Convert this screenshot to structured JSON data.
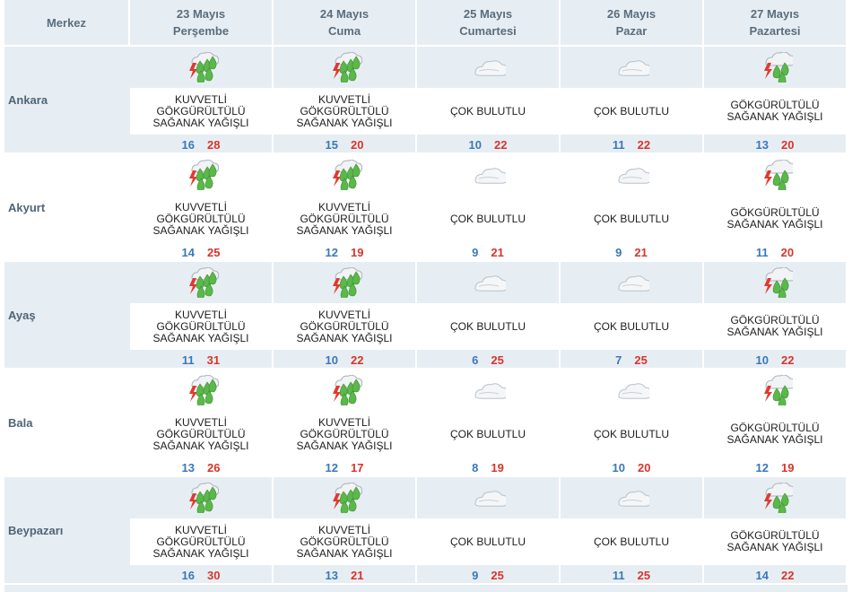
{
  "header": {
    "station_label": "Merkez",
    "days": [
      {
        "date": "23 Mayıs",
        "weekday": "Perşembe"
      },
      {
        "date": "24 Mayıs",
        "weekday": "Cuma"
      },
      {
        "date": "25 Mayıs",
        "weekday": "Cumartesi"
      },
      {
        "date": "26 Mayıs",
        "weekday": "Pazar"
      },
      {
        "date": "27 Mayıs",
        "weekday": "Pazartesi"
      }
    ]
  },
  "colors": {
    "header_bg": "#e7eef3",
    "header_text": "#5a6d7d",
    "temp_min": "#3a78b8",
    "temp_max": "#d9342b"
  },
  "rows": [
    {
      "city": "Ankara",
      "days": [
        {
          "icon": "heavy-thunder-shower-icon",
          "lines": [
            "KUVVETLİ",
            "GÖKGÜRÜLTÜLÜ",
            "SAĞANAK YAĞIŞLI"
          ],
          "min": "16",
          "max": "28"
        },
        {
          "icon": "heavy-thunder-shower-icon",
          "lines": [
            "KUVVETLİ",
            "GÖKGÜRÜLTÜLÜ",
            "SAĞANAK YAĞIŞLI"
          ],
          "min": "15",
          "max": "20"
        },
        {
          "icon": "cloudy-icon",
          "lines": [
            "ÇOK BULUTLU"
          ],
          "min": "10",
          "max": "22"
        },
        {
          "icon": "cloudy-icon",
          "lines": [
            "ÇOK BULUTLU"
          ],
          "min": "11",
          "max": "22"
        },
        {
          "icon": "thunder-shower-icon",
          "lines": [
            "GÖKGÜRÜLTÜLÜ",
            "SAĞANAK YAĞIŞLI"
          ],
          "min": "13",
          "max": "20"
        }
      ]
    },
    {
      "city": "Akyurt",
      "days": [
        {
          "icon": "heavy-thunder-shower-icon",
          "lines": [
            "KUVVETLİ",
            "GÖKGÜRÜLTÜLÜ",
            "SAĞANAK YAĞIŞLI"
          ],
          "min": "14",
          "max": "25"
        },
        {
          "icon": "heavy-thunder-shower-icon",
          "lines": [
            "KUVVETLİ",
            "GÖKGÜRÜLTÜLÜ",
            "SAĞANAK YAĞIŞLI"
          ],
          "min": "12",
          "max": "19"
        },
        {
          "icon": "cloudy-icon",
          "lines": [
            "ÇOK BULUTLU"
          ],
          "min": "9",
          "max": "21"
        },
        {
          "icon": "cloudy-icon",
          "lines": [
            "ÇOK BULUTLU"
          ],
          "min": "9",
          "max": "21"
        },
        {
          "icon": "thunder-shower-icon",
          "lines": [
            "GÖKGÜRÜLTÜLÜ",
            "SAĞANAK YAĞIŞLI"
          ],
          "min": "11",
          "max": "20"
        }
      ]
    },
    {
      "city": "Ayaş",
      "days": [
        {
          "icon": "heavy-thunder-shower-icon",
          "lines": [
            "KUVVETLİ",
            "GÖKGÜRÜLTÜLÜ",
            "SAĞANAK YAĞIŞLI"
          ],
          "min": "11",
          "max": "31"
        },
        {
          "icon": "heavy-thunder-shower-icon",
          "lines": [
            "KUVVETLİ",
            "GÖKGÜRÜLTÜLÜ",
            "SAĞANAK YAĞIŞLI"
          ],
          "min": "10",
          "max": "22"
        },
        {
          "icon": "cloudy-icon",
          "lines": [
            "ÇOK BULUTLU"
          ],
          "min": "6",
          "max": "25"
        },
        {
          "icon": "cloudy-icon",
          "lines": [
            "ÇOK BULUTLU"
          ],
          "min": "7",
          "max": "25"
        },
        {
          "icon": "thunder-shower-icon",
          "lines": [
            "GÖKGÜRÜLTÜLÜ",
            "SAĞANAK YAĞIŞLI"
          ],
          "min": "10",
          "max": "22"
        }
      ]
    },
    {
      "city": "Bala",
      "days": [
        {
          "icon": "heavy-thunder-shower-icon",
          "lines": [
            "KUVVETLİ",
            "GÖKGÜRÜLTÜLÜ",
            "SAĞANAK YAĞIŞLI"
          ],
          "min": "13",
          "max": "26"
        },
        {
          "icon": "heavy-thunder-shower-icon",
          "lines": [
            "KUVVETLİ",
            "GÖKGÜRÜLTÜLÜ",
            "SAĞANAK YAĞIŞLI"
          ],
          "min": "12",
          "max": "17"
        },
        {
          "icon": "cloudy-icon",
          "lines": [
            "ÇOK BULUTLU"
          ],
          "min": "8",
          "max": "19"
        },
        {
          "icon": "cloudy-icon",
          "lines": [
            "ÇOK BULUTLU"
          ],
          "min": "10",
          "max": "20"
        },
        {
          "icon": "thunder-shower-icon",
          "lines": [
            "GÖKGÜRÜLTÜLÜ",
            "SAĞANAK YAĞIŞLI"
          ],
          "min": "12",
          "max": "19"
        }
      ]
    },
    {
      "city": "Beypazarı",
      "days": [
        {
          "icon": "heavy-thunder-shower-icon",
          "lines": [
            "KUVVETLİ",
            "GÖKGÜRÜLTÜLÜ",
            "SAĞANAK YAĞIŞLI"
          ],
          "min": "16",
          "max": "30"
        },
        {
          "icon": "heavy-thunder-shower-icon",
          "lines": [
            "KUVVETLİ",
            "GÖKGÜRÜLTÜLÜ",
            "SAĞANAK YAĞIŞLI"
          ],
          "min": "13",
          "max": "21"
        },
        {
          "icon": "cloudy-icon",
          "lines": [
            "ÇOK BULUTLU"
          ],
          "min": "9",
          "max": "25"
        },
        {
          "icon": "cloudy-icon",
          "lines": [
            "ÇOK BULUTLU"
          ],
          "min": "11",
          "max": "25"
        },
        {
          "icon": "thunder-shower-icon",
          "lines": [
            "GÖKGÜRÜLTÜLÜ",
            "SAĞANAK YAĞIŞLI"
          ],
          "min": "14",
          "max": "22"
        }
      ]
    }
  ]
}
